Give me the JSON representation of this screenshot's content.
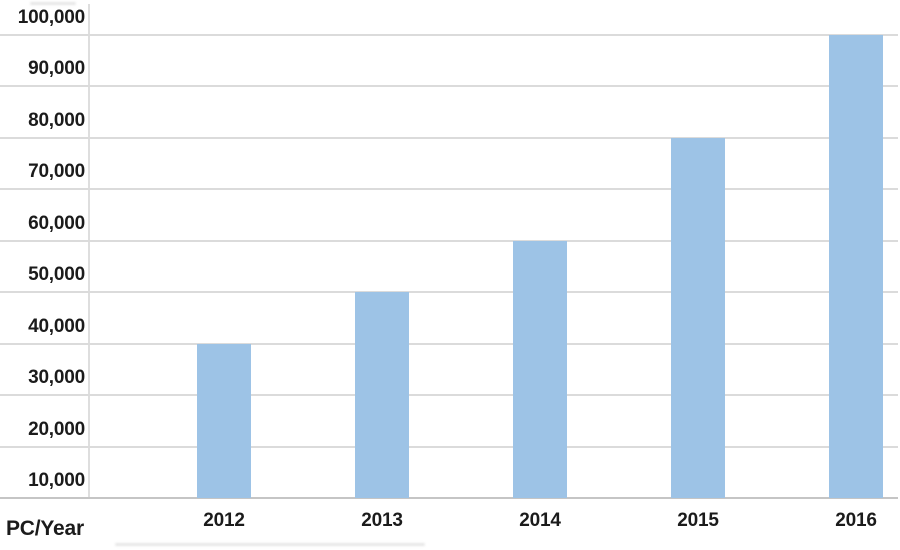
{
  "chart_data": {
    "type": "bar",
    "title": "",
    "corner_label": "PC/Year",
    "categories": [
      "2012",
      "2013",
      "2014",
      "2015",
      "2016"
    ],
    "values": [
      40000,
      50000,
      60000,
      80000,
      100000
    ],
    "ytick_values": [
      10000,
      20000,
      30000,
      40000,
      50000,
      60000,
      70000,
      80000,
      90000,
      100000
    ],
    "ytick_labels": [
      "10,000",
      "20,000",
      "30,000",
      "40,000",
      "50,000",
      "60,000",
      "70,000",
      "80,000",
      "90,000",
      "100,000"
    ],
    "ylim": [
      10000,
      100000
    ],
    "xlabel": "",
    "ylabel": "",
    "grid": true,
    "legend": null,
    "colors": {
      "bar": "#9DC3E6",
      "gridline": "#DBDBDB",
      "axis_line": "#C5C5C5",
      "text": "#1B1B1B",
      "background": "#FFFFFF"
    }
  }
}
